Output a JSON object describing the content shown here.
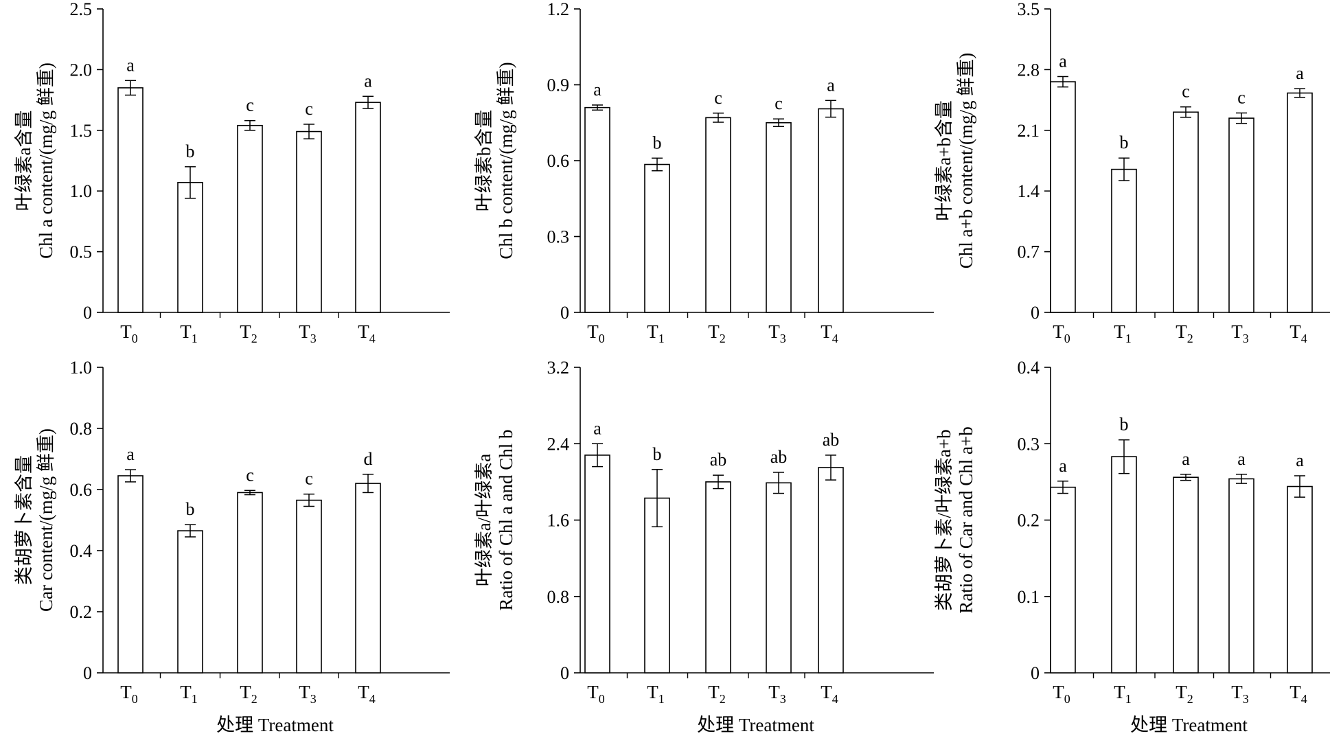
{
  "x_title": "处理 Treatment",
  "chart_data": [
    {
      "type": "bar",
      "ylabel_cn": "叶绿素a含量",
      "ylabel_en": "Chl a content/(mg/g  鲜重)",
      "categories": [
        {
          "main": "T",
          "sub": "0"
        },
        {
          "main": "T",
          "sub": "1"
        },
        {
          "main": "T",
          "sub": "2"
        },
        {
          "main": "T",
          "sub": "3"
        },
        {
          "main": "T",
          "sub": "4"
        }
      ],
      "values": [
        1.85,
        1.07,
        1.54,
        1.49,
        1.73
      ],
      "errors": [
        0.06,
        0.13,
        0.04,
        0.06,
        0.05
      ],
      "letters": [
        "a",
        "b",
        "c",
        "c",
        "a"
      ],
      "ylim": [
        0,
        2.5
      ],
      "yticks": [
        "0",
        "0.5",
        "1.0",
        "1.5",
        "2.0",
        "2.5"
      ]
    },
    {
      "type": "bar",
      "ylabel_cn": "叶绿素b含量",
      "ylabel_en": "Chl b content/(mg/g  鲜重)",
      "categories": [
        {
          "main": "T",
          "sub": "0"
        },
        {
          "main": "T",
          "sub": "1"
        },
        {
          "main": "T",
          "sub": "2"
        },
        {
          "main": "T",
          "sub": "3"
        },
        {
          "main": "T",
          "sub": "4"
        }
      ],
      "values": [
        0.81,
        0.585,
        0.77,
        0.75,
        0.805
      ],
      "errors": [
        0.01,
        0.025,
        0.018,
        0.015,
        0.033
      ],
      "letters": [
        "a",
        "b",
        "c",
        "c",
        "a"
      ],
      "ylim": [
        0,
        1.2
      ],
      "yticks": [
        "0",
        "0.3",
        "0.6",
        "0.9",
        "1.2"
      ]
    },
    {
      "type": "bar",
      "ylabel_cn": "叶绿素a+b含量",
      "ylabel_en": "Chl a+b content/(mg/g  鲜重)",
      "categories": [
        {
          "main": "T",
          "sub": "0"
        },
        {
          "main": "T",
          "sub": "1"
        },
        {
          "main": "T",
          "sub": "2"
        },
        {
          "main": "T",
          "sub": "3"
        },
        {
          "main": "T",
          "sub": "4"
        }
      ],
      "values": [
        2.66,
        1.65,
        2.31,
        2.24,
        2.53
      ],
      "errors": [
        0.06,
        0.13,
        0.06,
        0.06,
        0.05
      ],
      "letters": [
        "a",
        "b",
        "c",
        "c",
        "a"
      ],
      "ylim": [
        0,
        3.5
      ],
      "yticks": [
        "0",
        "0.7",
        "1.4",
        "2.1",
        "2.8",
        "3.5"
      ]
    },
    {
      "type": "bar",
      "ylabel_cn": "类胡萝卜素含量",
      "ylabel_en": "Car content/(mg/g  鲜重)",
      "categories": [
        {
          "main": "T",
          "sub": "0"
        },
        {
          "main": "T",
          "sub": "1"
        },
        {
          "main": "T",
          "sub": "2"
        },
        {
          "main": "T",
          "sub": "3"
        },
        {
          "main": "T",
          "sub": "4"
        }
      ],
      "values": [
        0.645,
        0.465,
        0.59,
        0.565,
        0.62
      ],
      "errors": [
        0.02,
        0.02,
        0.007,
        0.02,
        0.03
      ],
      "letters": [
        "a",
        "b",
        "c",
        "c",
        "d"
      ],
      "ylim": [
        0,
        1.0
      ],
      "yticks": [
        "0",
        "0.2",
        "0.4",
        "0.6",
        "0.8",
        "1.0"
      ]
    },
    {
      "type": "bar",
      "ylabel_cn": "叶绿素a/叶绿素a",
      "ylabel_en": "Ratio of Chl a and Chl b",
      "categories": [
        {
          "main": "T",
          "sub": "0"
        },
        {
          "main": "T",
          "sub": "1"
        },
        {
          "main": "T",
          "sub": "2"
        },
        {
          "main": "T",
          "sub": "3"
        },
        {
          "main": "T",
          "sub": "4"
        }
      ],
      "values": [
        2.28,
        1.83,
        2.0,
        1.99,
        2.15
      ],
      "errors": [
        0.12,
        0.3,
        0.07,
        0.11,
        0.13
      ],
      "letters": [
        "a",
        "b",
        "ab",
        "ab",
        "ab"
      ],
      "ylim": [
        0,
        3.2
      ],
      "yticks": [
        "0",
        "0.8",
        "1.6",
        "2.4",
        "3.2"
      ]
    },
    {
      "type": "bar",
      "ylabel_cn": "类胡萝卜素/叶绿素a+b",
      "ylabel_en": "Ratio of Car and Chl a+b",
      "categories": [
        {
          "main": "T",
          "sub": "0"
        },
        {
          "main": "T",
          "sub": "1"
        },
        {
          "main": "T",
          "sub": "2"
        },
        {
          "main": "T",
          "sub": "3"
        },
        {
          "main": "T",
          "sub": "4"
        }
      ],
      "values": [
        0.243,
        0.283,
        0.256,
        0.254,
        0.244
      ],
      "errors": [
        0.008,
        0.022,
        0.004,
        0.006,
        0.014
      ],
      "letters": [
        "a",
        "b",
        "a",
        "a",
        "a"
      ],
      "ylim": [
        0,
        0.4
      ],
      "yticks": [
        "0",
        "0.1",
        "0.2",
        "0.3",
        "0.4"
      ]
    }
  ]
}
